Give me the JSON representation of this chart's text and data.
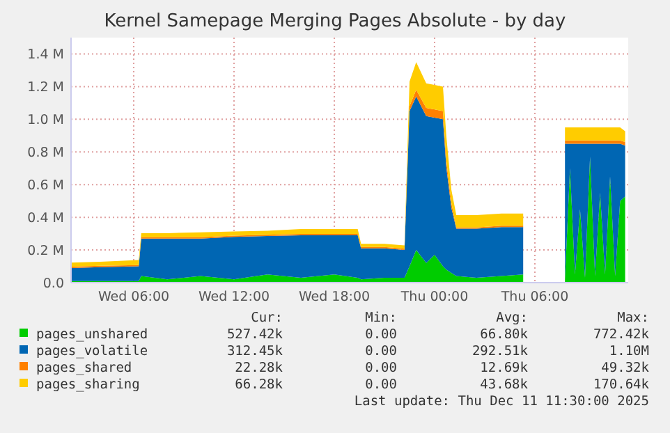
{
  "chart_data": {
    "type": "area",
    "stacked": true,
    "title": "Kernel Samepage Merging Pages Absolute - by day",
    "x": [
      "2025-12-10T02:15",
      "2025-12-10T04:00",
      "2025-12-10T06:18",
      "2025-12-10T06:27",
      "2025-12-10T08:00",
      "2025-12-10T10:00",
      "2025-12-10T12:00",
      "2025-12-10T14:00",
      "2025-12-10T16:00",
      "2025-12-10T18:00",
      "2025-12-10T19:24",
      "2025-12-10T19:36",
      "2025-12-10T21:00",
      "2025-12-10T22:12",
      "2025-12-10T22:30",
      "2025-12-10T22:54",
      "2025-12-10T23:30",
      "2025-12-11T00:00",
      "2025-12-11T00:30",
      "2025-12-11T00:42",
      "2025-12-11T01:00",
      "2025-12-11T01:18",
      "2025-12-11T02:30",
      "2025-12-11T04:00",
      "2025-12-11T05:18",
      "2025-12-11T06:00",
      "2025-12-11T07:48",
      "2025-12-11T08:06",
      "2025-12-11T08:24",
      "2025-12-11T08:42",
      "2025-12-11T09:00",
      "2025-12-11T09:18",
      "2025-12-11T09:36",
      "2025-12-11T09:54",
      "2025-12-11T10:12",
      "2025-12-11T10:30",
      "2025-12-11T10:48",
      "2025-12-11T11:06",
      "2025-12-11T11:24"
    ],
    "series": [
      {
        "name": "pages_unshared",
        "color": "#00cc00",
        "values": [
          10000,
          10000,
          10000,
          40000,
          20000,
          40000,
          20000,
          50000,
          30000,
          50000,
          30000,
          20000,
          30000,
          30000,
          100000,
          200000,
          120000,
          170000,
          100000,
          80000,
          60000,
          40000,
          30000,
          40000,
          50000,
          null,
          20000,
          700000,
          50000,
          450000,
          30000,
          770000,
          40000,
          550000,
          50000,
          650000,
          40000,
          500000,
          527000
        ]
      },
      {
        "name": "pages_volatile",
        "color": "#0066b3",
        "values": [
          80000,
          85000,
          90000,
          230000,
          250000,
          230000,
          260000,
          235000,
          260000,
          240000,
          260000,
          190000,
          180000,
          170000,
          950000,
          940000,
          900000,
          840000,
          900000,
          630000,
          400000,
          290000,
          300000,
          300000,
          290000,
          null,
          830000,
          150000,
          800000,
          400000,
          820000,
          80000,
          810000,
          300000,
          800000,
          200000,
          810000,
          350000,
          312000
        ]
      },
      {
        "name": "pages_shared",
        "color": "#ff8000",
        "values": [
          8000,
          8000,
          8000,
          8000,
          8000,
          8000,
          8000,
          8000,
          8000,
          8000,
          8000,
          8000,
          8000,
          8000,
          30000,
          40000,
          50000,
          50000,
          50000,
          40000,
          30000,
          8000,
          8000,
          8000,
          8000,
          null,
          20000,
          20000,
          20000,
          20000,
          20000,
          20000,
          20000,
          20000,
          20000,
          20000,
          20000,
          20000,
          22000
        ]
      },
      {
        "name": "pages_sharing",
        "color": "#ffcc00",
        "values": [
          25000,
          25000,
          30000,
          25000,
          25000,
          30000,
          25000,
          25000,
          30000,
          30000,
          30000,
          20000,
          20000,
          20000,
          150000,
          170000,
          150000,
          150000,
          150000,
          150000,
          80000,
          75000,
          75000,
          75000,
          75000,
          null,
          80000,
          80000,
          80000,
          80000,
          80000,
          80000,
          80000,
          80000,
          80000,
          80000,
          80000,
          80000,
          66000
        ]
      }
    ],
    "xlim": [
      "2025-12-10T02:15",
      "2025-12-11T11:35"
    ],
    "xticks": [
      {
        "value": "2025-12-10T06:00",
        "label": "Wed 06:00"
      },
      {
        "value": "2025-12-10T12:00",
        "label": "Wed 12:00"
      },
      {
        "value": "2025-12-10T18:00",
        "label": "Wed 18:00"
      },
      {
        "value": "2025-12-11T00:00",
        "label": "Thu 00:00"
      },
      {
        "value": "2025-12-11T06:00",
        "label": "Thu 06:00"
      }
    ],
    "ylim": [
      0,
      1500000
    ],
    "yticks": [
      {
        "value": 0,
        "label": "0.0"
      },
      {
        "value": 200000,
        "label": "0.2 M"
      },
      {
        "value": 400000,
        "label": "0.4 M"
      },
      {
        "value": 600000,
        "label": "0.6 M"
      },
      {
        "value": 800000,
        "label": "0.8 M"
      },
      {
        "value": 1000000,
        "label": "1.0 M"
      },
      {
        "value": 1200000,
        "label": "1.2 M"
      },
      {
        "value": 1400000,
        "label": "1.4 M"
      }
    ],
    "grid": true,
    "legend": "bottom",
    "annotations": [
      "Cur:",
      "Min:",
      "Avg:",
      "Max:",
      "527.42k",
      "0.00",
      "66.80k",
      "772.42k",
      "312.45k",
      "0.00",
      "292.51k",
      "1.10M",
      "22.28k",
      "0.00",
      "12.69k",
      "49.32k",
      "66.28k",
      "0.00",
      "43.68k",
      "170.64k",
      "Last update: Thu Dec 11 11:30:00 2025"
    ]
  }
}
